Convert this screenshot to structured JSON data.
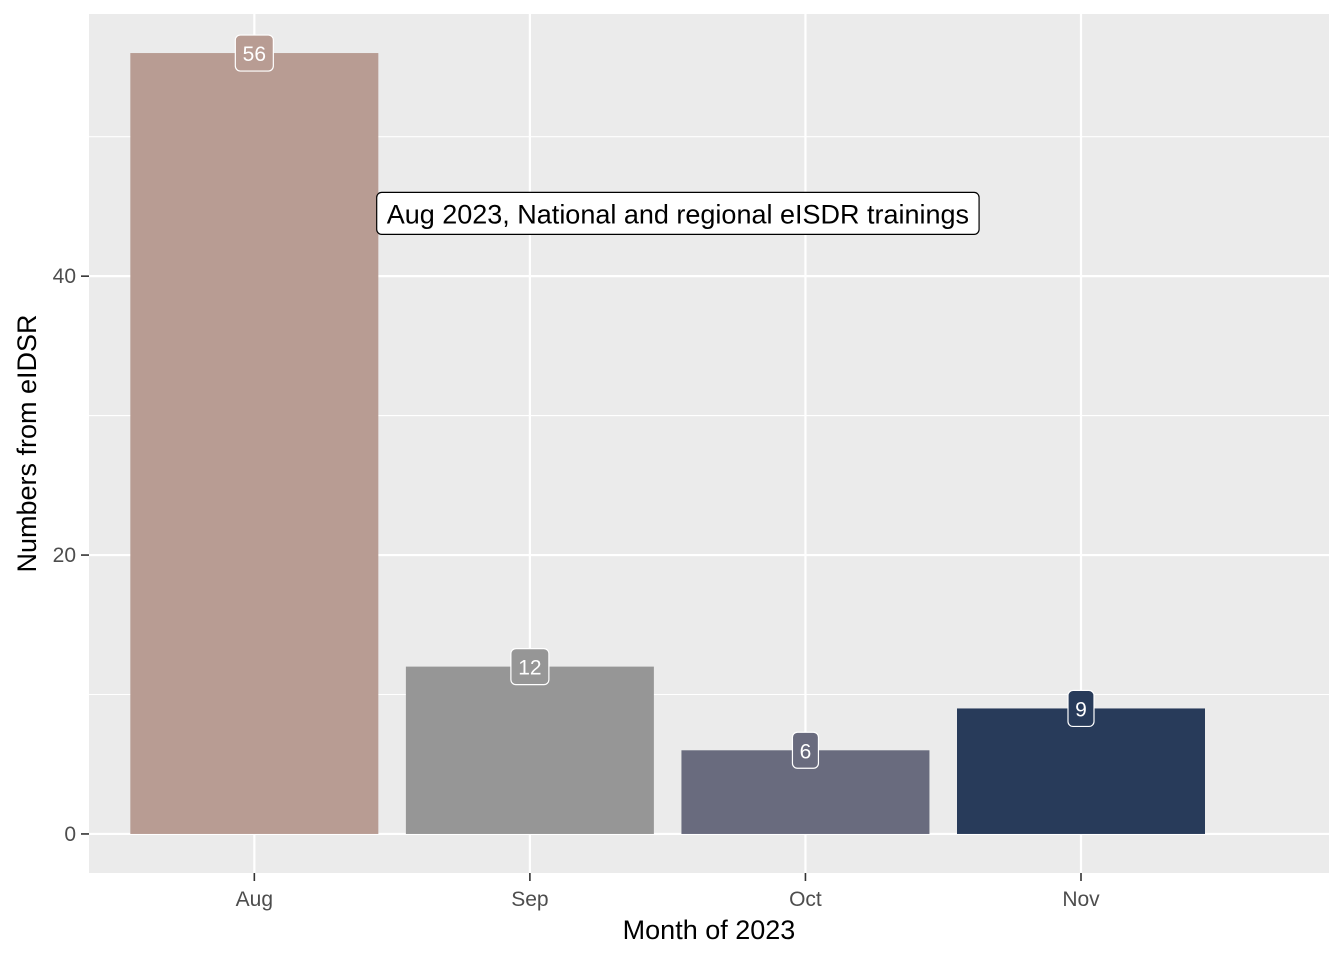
{
  "chart_data": {
    "type": "bar",
    "title": "",
    "xlabel": "Month of 2023",
    "ylabel": "Numbers from eIDSR",
    "categories": [
      "Aug",
      "Sep",
      "Oct",
      "Nov"
    ],
    "values": [
      56,
      12,
      6,
      9
    ],
    "data_labels": [
      "56",
      "12",
      "6",
      "9"
    ],
    "bar_colors": [
      "#b89c93",
      "#969696",
      "#696b7e",
      "#283b5a"
    ],
    "ylim": [
      -2.8,
      58.8
    ],
    "yticks": [
      0,
      20,
      40
    ],
    "ytick_labels": [
      "0",
      "20",
      "40"
    ],
    "grid": true,
    "background": "#ebebeb",
    "gridline_color": "#ffffff",
    "annotation": {
      "text": "Aug 2023, National and regional eISDR trainings",
      "x_category": "Sep",
      "y": 44.5
    }
  }
}
